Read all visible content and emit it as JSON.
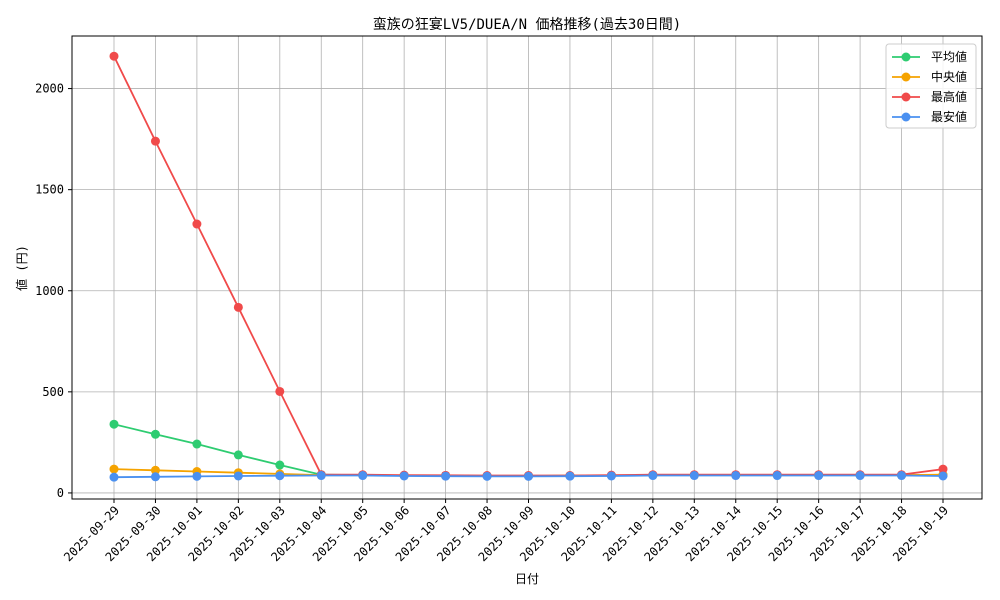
{
  "chart_data": {
    "type": "line",
    "title": "蛮族の狂宴LV5/DUEA/N 価格推移(過去30日間)",
    "xlabel": "日付",
    "ylabel": "値 (円)",
    "ylim": [
      -30,
      2260
    ],
    "yticks": [
      0,
      500,
      1000,
      1500,
      2000
    ],
    "grid": true,
    "legend_position": "top-right",
    "categories": [
      "2025-09-29",
      "2025-09-30",
      "2025-10-01",
      "2025-10-02",
      "2025-10-03",
      "2025-10-04",
      "2025-10-05",
      "2025-10-06",
      "2025-10-07",
      "2025-10-08",
      "2025-10-09",
      "2025-10-10",
      "2025-10-11",
      "2025-10-12",
      "2025-10-13",
      "2025-10-14",
      "2025-10-15",
      "2025-10-16",
      "2025-10-17",
      "2025-10-18",
      "2025-10-19"
    ],
    "series": [
      {
        "name": "平均値",
        "color": "#2ecc71",
        "values": [
          340,
          290,
          242,
          188,
          138,
          90,
          88,
          86,
          85,
          84,
          84,
          85,
          86,
          88,
          88,
          88,
          88,
          88,
          88,
          88,
          88
        ]
      },
      {
        "name": "中央値",
        "color": "#f5a300",
        "values": [
          118,
          112,
          106,
          100,
          94,
          88,
          88,
          86,
          85,
          84,
          84,
          85,
          86,
          88,
          88,
          88,
          88,
          88,
          88,
          88,
          90
        ]
      },
      {
        "name": "最高値",
        "color": "#f04a4a",
        "values": [
          2160,
          1740,
          1330,
          918,
          502,
          90,
          90,
          88,
          87,
          86,
          86,
          86,
          88,
          90,
          90,
          90,
          90,
          90,
          90,
          90,
          118
        ]
      },
      {
        "name": "最安値",
        "color": "#4a90f0",
        "values": [
          78,
          80,
          82,
          84,
          85,
          86,
          86,
          84,
          83,
          82,
          82,
          83,
          84,
          86,
          86,
          86,
          86,
          86,
          86,
          86,
          84
        ]
      }
    ]
  }
}
